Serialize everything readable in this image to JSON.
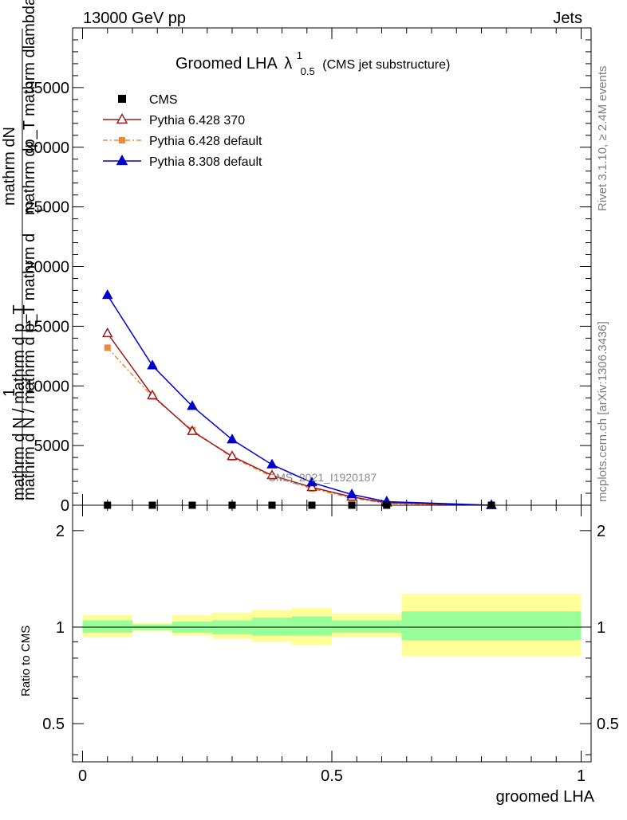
{
  "header": {
    "left": "13000 GeV pp",
    "right": "Jets"
  },
  "side_labels": {
    "rivet": "Rivet 3.1.10, ≥ 2.4M events",
    "mcplots": "mcplots.cern.ch [arXiv:1306.3436]"
  },
  "chart_data": [
    {
      "type": "line",
      "title": {
        "main": "Groomed LHA",
        "lambda": "λ",
        "sup": "1",
        "sub": "0.5",
        "extra": "(CMS jet substructure)"
      },
      "ylabel": {
        "line1": "mathrm dN",
        "line2": "mathrm dp_T mathrm dlambda",
        "line3": "1",
        "line4": "mathrm d N / mathrm d p_T mathrm d",
        "line5": "mathrm d N / mathrm d p_T",
        "sub": "T"
      },
      "ylim": [
        0,
        40000
      ],
      "xlim": [
        -0.02,
        1.02
      ],
      "yticks": [
        {
          "v": 0,
          "label": "0"
        },
        {
          "v": 5000,
          "label": "5000"
        },
        {
          "v": 10000,
          "label": "10000"
        },
        {
          "v": 15000,
          "label": "15000"
        },
        {
          "v": 20000,
          "label": "20000"
        },
        {
          "v": 25000,
          "label": "25000"
        },
        {
          "v": 30000,
          "label": "30000"
        },
        {
          "v": 35000,
          "label": "35000"
        }
      ],
      "watermark": "CMS_2021_I1920187",
      "legend": {
        "placement": "top-left",
        "entries": [
          {
            "name": "CMS",
            "color": "#000000",
            "marker": "square",
            "line": false
          },
          {
            "name": "Pythia 6.428 370",
            "color": "#9b1c1c",
            "marker": "open-triangle",
            "line": true,
            "dash": ""
          },
          {
            "name": "Pythia 6.428 default",
            "color": "#f0883a",
            "marker": "square",
            "line": true,
            "dash": "6,3,2,3"
          },
          {
            "name": "Pythia 8.308 default",
            "color": "#0000cc",
            "marker": "triangle",
            "line": true,
            "dash": ""
          }
        ]
      },
      "series": [
        {
          "name": "CMS",
          "x": [
            0.05,
            0.14,
            0.22,
            0.3,
            0.38,
            0.46,
            0.54,
            0.61,
            0.82
          ],
          "y": [
            0,
            0,
            0,
            0,
            0,
            0,
            0,
            0,
            0
          ]
        },
        {
          "name": "Pythia 6.428 370",
          "x": [
            0.05,
            0.14,
            0.22,
            0.3,
            0.38,
            0.46,
            0.54,
            0.61,
            0.82
          ],
          "y": [
            14400,
            9200,
            6200,
            4100,
            2500,
            1500,
            700,
            200,
            0
          ]
        },
        {
          "name": "Pythia 6.428 default",
          "x": [
            0.05,
            0.14,
            0.22,
            0.3,
            0.38,
            0.46,
            0.54,
            0.61,
            0.82
          ],
          "y": [
            13200,
            9100,
            6300,
            4000,
            2400,
            1400,
            600,
            150,
            0
          ]
        },
        {
          "name": "Pythia 8.308 default",
          "x": [
            0.05,
            0.14,
            0.22,
            0.3,
            0.38,
            0.46,
            0.54,
            0.61,
            0.82
          ],
          "y": [
            17600,
            11700,
            8300,
            5500,
            3400,
            1900,
            900,
            300,
            0
          ]
        }
      ]
    },
    {
      "type": "area",
      "ylabel": "Ratio to CMS",
      "xlabel": "groomed LHA",
      "ylim": [
        0.38,
        2.4
      ],
      "scale": "log",
      "xlim": [
        -0.02,
        1.02
      ],
      "yticks": [
        {
          "v": 0.5,
          "label": "0.5"
        },
        {
          "v": 1,
          "label": "1"
        },
        {
          "v": 2,
          "label": "2"
        }
      ],
      "xticks": [
        {
          "v": 0,
          "label": "0"
        },
        {
          "v": 0.5,
          "label": "0.5"
        },
        {
          "v": 1,
          "label": "1"
        }
      ],
      "band_colors": {
        "inner": "#99ff99",
        "outer": "#ffff99"
      },
      "bins": [
        {
          "x0": 0.0,
          "x1": 0.1,
          "in_lo": 0.96,
          "in_hi": 1.05,
          "out_lo": 0.93,
          "out_hi": 1.09
        },
        {
          "x0": 0.1,
          "x1": 0.18,
          "in_lo": 0.98,
          "in_hi": 1.02,
          "out_lo": 0.97,
          "out_hi": 1.03
        },
        {
          "x0": 0.18,
          "x1": 0.26,
          "in_lo": 0.96,
          "in_hi": 1.04,
          "out_lo": 0.94,
          "out_hi": 1.09
        },
        {
          "x0": 0.26,
          "x1": 0.34,
          "in_lo": 0.95,
          "in_hi": 1.05,
          "out_lo": 0.92,
          "out_hi": 1.11
        },
        {
          "x0": 0.34,
          "x1": 0.42,
          "in_lo": 0.94,
          "in_hi": 1.07,
          "out_lo": 0.9,
          "out_hi": 1.13
        },
        {
          "x0": 0.42,
          "x1": 0.5,
          "in_lo": 0.94,
          "in_hi": 1.08,
          "out_lo": 0.88,
          "out_hi": 1.15
        },
        {
          "x0": 0.5,
          "x1": 0.58,
          "in_lo": 0.96,
          "in_hi": 1.05,
          "out_lo": 0.93,
          "out_hi": 1.1
        },
        {
          "x0": 0.58,
          "x1": 0.64,
          "in_lo": 0.96,
          "in_hi": 1.05,
          "out_lo": 0.93,
          "out_hi": 1.1
        },
        {
          "x0": 0.64,
          "x1": 1.0,
          "in_lo": 0.91,
          "in_hi": 1.12,
          "out_lo": 0.81,
          "out_hi": 1.27
        }
      ]
    }
  ]
}
